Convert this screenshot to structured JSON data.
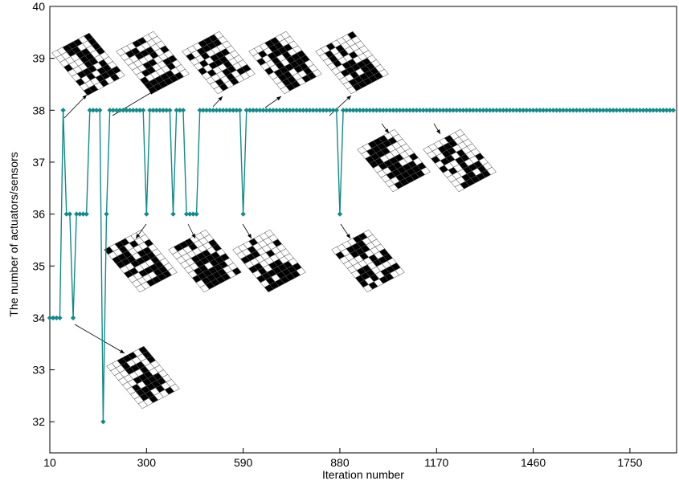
{
  "chart_data": {
    "type": "line",
    "x_label": "Iteration number",
    "y_label": "The number of actuators/sensors",
    "color": "#138a8a",
    "xlim": [
      10,
      1890
    ],
    "xticks": [
      10,
      300,
      590,
      880,
      1170,
      1460,
      1750
    ],
    "ylim": [
      31.4,
      40
    ],
    "yticks": [
      32,
      33,
      34,
      35,
      36,
      37,
      38,
      39,
      40
    ],
    "x": [
      10,
      20,
      30,
      40,
      50,
      60,
      70,
      80,
      90,
      100,
      110,
      120,
      130,
      140,
      150,
      160,
      170,
      180,
      190,
      200,
      210,
      220,
      230,
      240,
      250,
      260,
      270,
      280,
      290,
      300,
      310,
      320,
      330,
      340,
      350,
      360,
      370,
      380,
      390,
      400,
      410,
      420,
      430,
      440,
      450,
      460,
      470,
      480,
      490,
      500,
      510,
      520,
      530,
      540,
      550,
      560,
      570,
      580,
      590,
      600,
      610,
      620,
      630,
      640,
      650,
      660,
      670,
      680,
      690,
      700,
      710,
      720,
      730,
      740,
      750,
      760,
      770,
      780,
      790,
      800,
      810,
      820,
      830,
      840,
      850,
      860,
      870,
      880,
      890,
      900,
      910,
      920,
      930,
      940,
      950,
      960,
      970,
      980,
      990,
      1000,
      1010,
      1020,
      1030,
      1040,
      1050,
      1060,
      1070,
      1080,
      1090,
      1100,
      1110,
      1120,
      1130,
      1140,
      1150,
      1160,
      1170,
      1180,
      1190,
      1200,
      1210,
      1220,
      1230,
      1240,
      1250,
      1260,
      1270,
      1280,
      1290,
      1300,
      1310,
      1320,
      1330,
      1340,
      1350,
      1360,
      1370,
      1380,
      1390,
      1400,
      1410,
      1420,
      1430,
      1440,
      1450,
      1460,
      1470,
      1480,
      1490,
      1500,
      1510,
      1520,
      1530,
      1540,
      1550,
      1560,
      1570,
      1580,
      1590,
      1600,
      1610,
      1620,
      1630,
      1640,
      1650,
      1660,
      1670,
      1680,
      1690,
      1700,
      1710,
      1720,
      1730,
      1740,
      1750,
      1760,
      1770,
      1780,
      1790,
      1800,
      1810,
      1820,
      1830,
      1840,
      1850,
      1860,
      1870,
      1880
    ],
    "values": [
      34,
      34,
      34,
      34,
      38,
      36,
      36,
      34,
      36,
      36,
      36,
      36,
      38,
      38,
      38,
      38,
      32,
      36,
      38,
      38,
      38,
      38,
      38,
      38,
      38,
      38,
      38,
      38,
      38,
      36,
      38,
      38,
      38,
      38,
      38,
      38,
      38,
      36,
      38,
      38,
      38,
      36,
      36,
      36,
      36,
      38,
      38,
      38,
      38,
      38,
      38,
      38,
      38,
      38,
      38,
      38,
      38,
      38,
      36,
      38,
      38,
      38,
      38,
      38,
      38,
      38,
      38,
      38,
      38,
      38,
      38,
      38,
      38,
      38,
      38,
      38,
      38,
      38,
      38,
      38,
      38,
      38,
      38,
      38,
      38,
      38,
      38,
      36,
      38,
      38,
      38,
      38,
      38,
      38,
      38,
      38,
      38,
      38,
      38,
      38,
      38,
      38,
      38,
      38,
      38,
      38,
      38,
      38,
      38,
      38,
      38,
      38,
      38,
      38,
      38,
      38,
      38,
      38,
      38,
      38,
      38,
      38,
      38,
      38,
      38,
      38,
      38,
      38,
      38,
      38,
      38,
      38,
      38,
      38,
      38,
      38,
      38,
      38,
      38,
      38,
      38,
      38,
      38,
      38,
      38,
      38,
      38,
      38,
      38,
      38,
      38,
      38,
      38,
      38,
      38,
      38,
      38,
      38,
      38,
      38,
      38,
      38,
      38,
      38,
      38,
      38,
      38,
      38,
      38,
      38,
      38,
      38,
      38,
      38,
      38,
      38,
      38,
      38,
      38,
      38,
      38,
      38,
      38,
      38,
      38,
      38,
      38,
      38
    ]
  }
}
